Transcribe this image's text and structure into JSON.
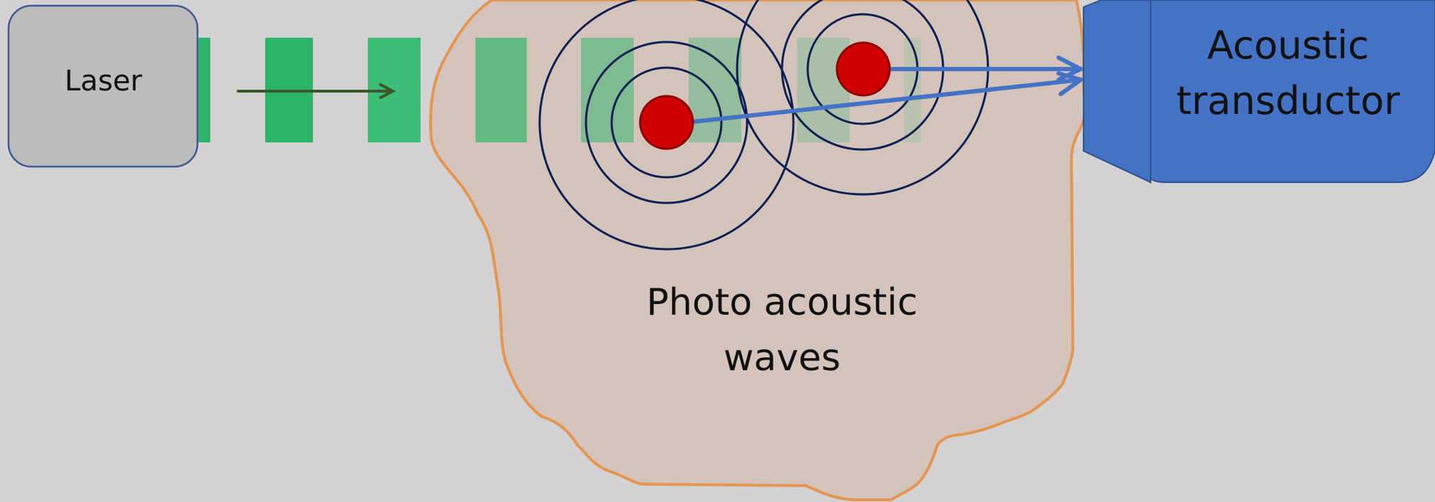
{
  "diagram": {
    "laser_label": "Laser",
    "transducer_label_lines": [
      "Acoustic",
      "transductor"
    ],
    "waves_label_lines": [
      "Photo acoustic",
      "waves"
    ]
  },
  "colors": {
    "background": "#d3d1d1",
    "laser_fill": "#bdbcba",
    "laser_stroke": "#3d5a96",
    "tissue_fill": "#d3c3bb",
    "tissue_stroke": "#e39650",
    "pulse_green": "#2bb46a",
    "beam_arrow": "#3c5a28",
    "wave_rings": "#0e1f52",
    "absorber_red": "#d10000",
    "signal_blue": "#4472c4",
    "transducer_blue": "#4472c4"
  },
  "icons": {
    "absorber": "red-circle-absorber",
    "rings": "concentric-wave-rings"
  }
}
